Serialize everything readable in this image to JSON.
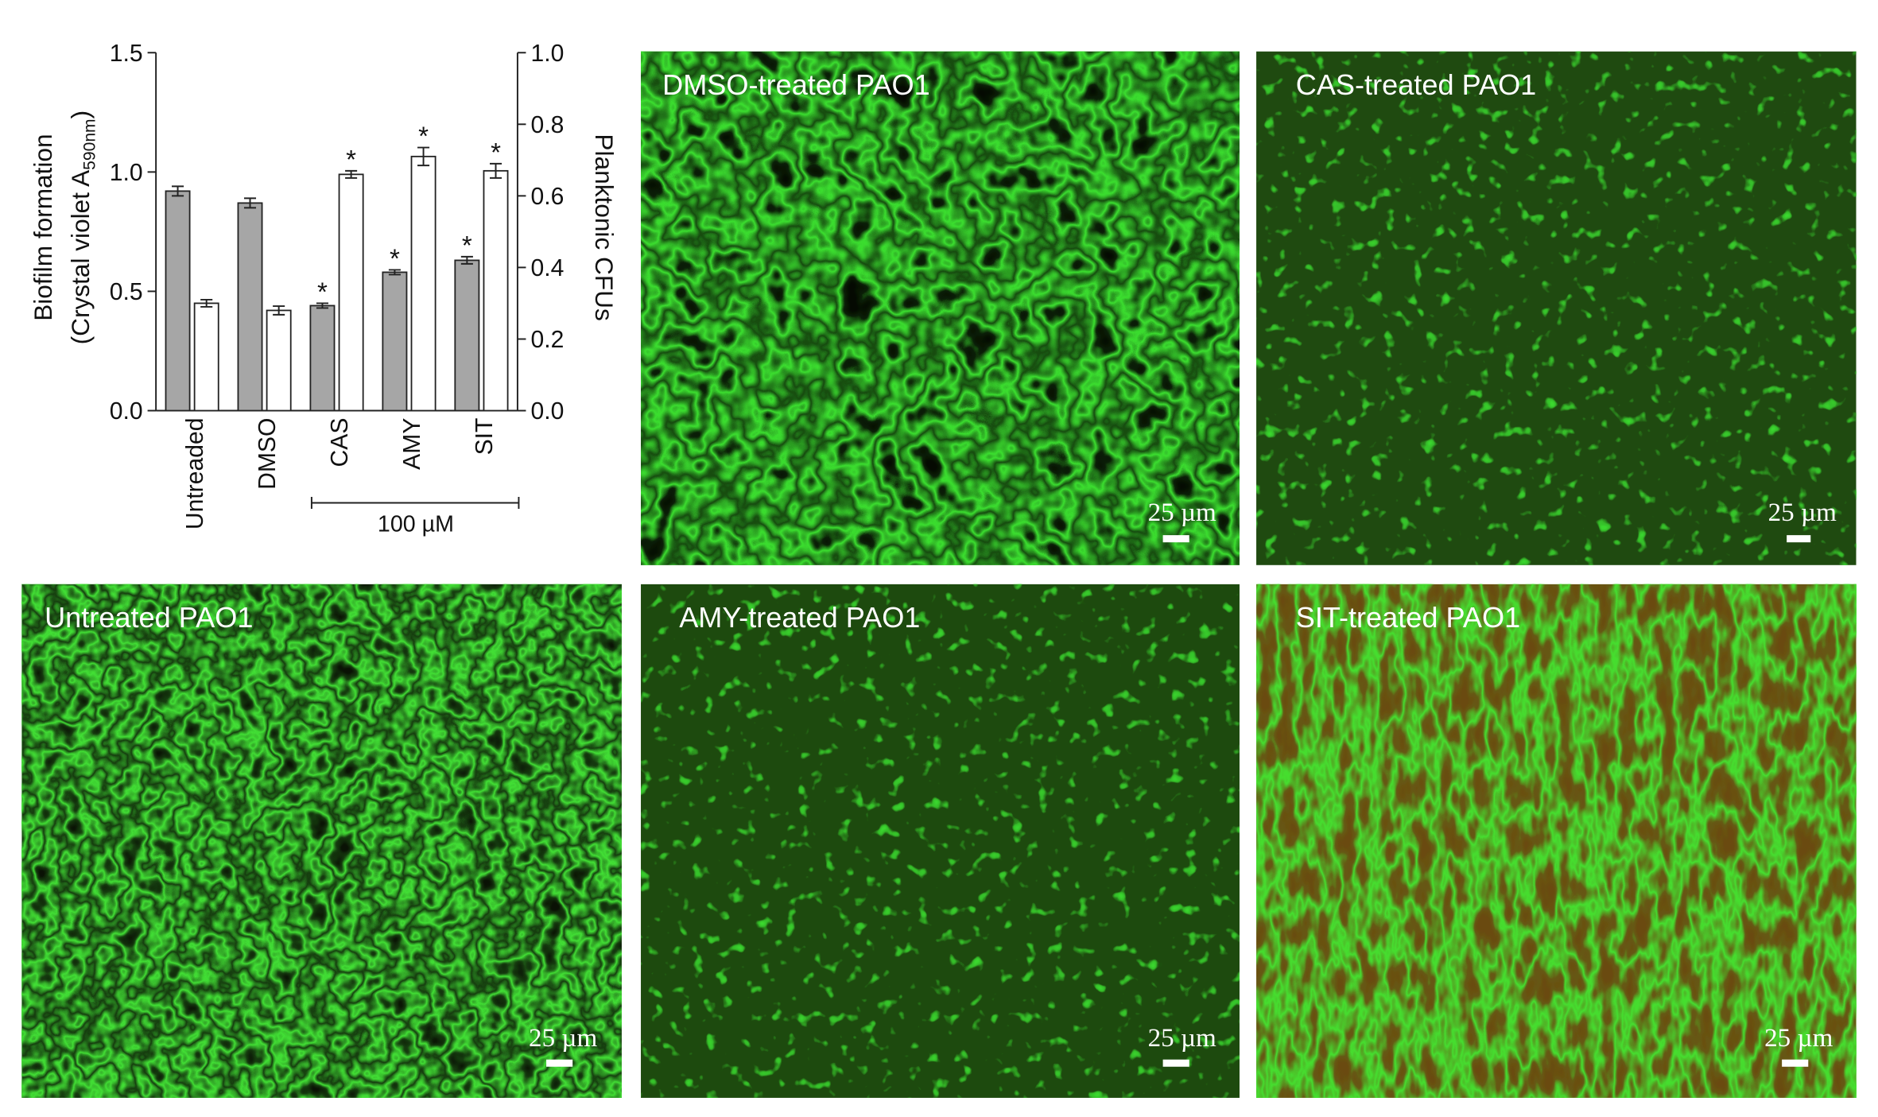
{
  "chart_data": {
    "type": "bar",
    "categories": [
      "Untreaded",
      "DMSO",
      "CAS",
      "AMY",
      "SIT"
    ],
    "y_label": [
      "Biofilm formation",
      "(Crystal violet A",
      "590nm",
      ")"
    ],
    "y2_label": "Planktonic CFUs",
    "group_label": "100 µM",
    "series": [
      {
        "color": "#a6a6a6",
        "axis": "y",
        "values": [
          0.92,
          0.87,
          0.44,
          0.58,
          0.63
        ],
        "errors": [
          0.02,
          0.02,
          0.01,
          0.01,
          0.015
        ],
        "markers": [
          null,
          null,
          "*",
          "*",
          "*"
        ]
      },
      {
        "color": "#ffffff",
        "axis": "y2",
        "values": [
          0.3,
          0.28,
          0.66,
          0.71,
          0.67
        ],
        "errors": [
          0.01,
          0.012,
          0.01,
          0.025,
          0.02
        ],
        "markers": [
          null,
          null,
          "*",
          "*",
          "*"
        ]
      }
    ],
    "ylim": [
      0,
      1.5
    ],
    "yticks": [
      {
        "value": 0,
        "label": "0.0"
      },
      0.5,
      {
        "value": 1,
        "label": "1.0"
      },
      1.5
    ],
    "y2lim": [
      0,
      1.0
    ],
    "y2ticks": [
      {
        "value": 0,
        "label": "0.0"
      },
      0.2,
      0.4,
      0.6,
      0.8,
      {
        "value": 1,
        "label": "1.0"
      }
    ]
  },
  "panels": [
    {
      "label": "DMSO-treated PAO1",
      "scale": "25 µm"
    },
    {
      "label": "CAS-treated PAO1",
      "scale": "25 µm"
    },
    {
      "label": "Untreated PAO1",
      "scale": "25 µm"
    },
    {
      "label": "AMY-treated PAO1",
      "scale": "25 µm"
    },
    {
      "label": "SIT-treated PAO1",
      "scale": "25 µm"
    }
  ]
}
